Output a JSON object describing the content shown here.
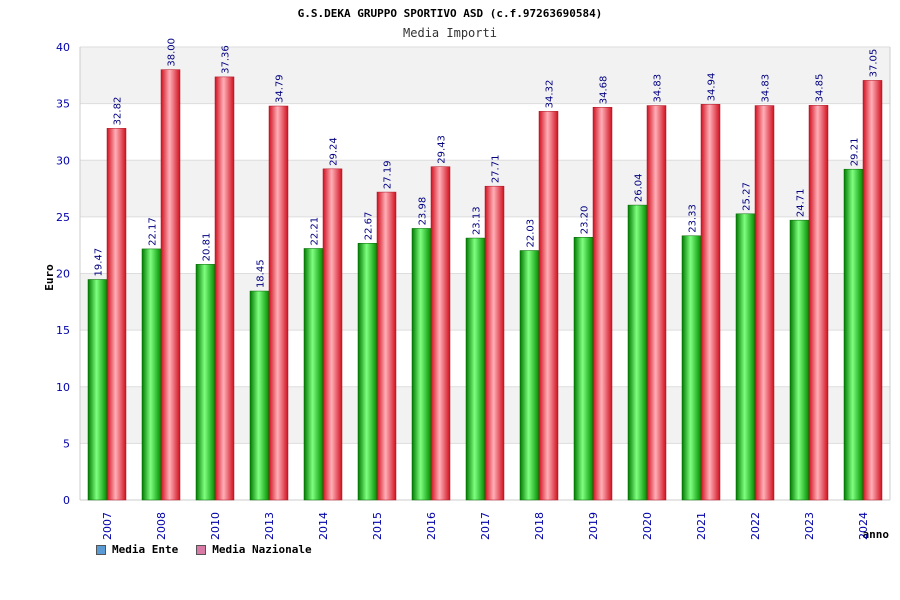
{
  "chart_data": {
    "type": "bar",
    "title": "G.S.DEKA GRUPPO SPORTIVO ASD (c.f.97263690584)",
    "subtitle": "Media Importi",
    "xlabel": "anno",
    "ylabel": "Euro",
    "ylim": [
      0,
      40
    ],
    "yticks": [
      0,
      5,
      10,
      15,
      20,
      25,
      30,
      35,
      40
    ],
    "categories": [
      "2007",
      "2008",
      "2010",
      "2013",
      "2014",
      "2015",
      "2016",
      "2017",
      "2018",
      "2019",
      "2020",
      "2021",
      "2022",
      "2023",
      "2024"
    ],
    "series": [
      {
        "name": "Media Ente",
        "color": "#00b000",
        "legend_color": "#5b9bd5",
        "values": [
          19.47,
          22.17,
          20.81,
          18.45,
          22.21,
          22.67,
          23.98,
          23.13,
          22.03,
          23.2,
          26.04,
          23.33,
          25.27,
          24.71,
          29.21
        ],
        "labels": [
          "19.47",
          "22.17",
          "20.81",
          "18.45",
          "22.21",
          "22.67",
          "23.98",
          "23.13",
          "22.03",
          "23.20",
          "26.04",
          "23.33",
          "25.27",
          "24.71",
          "29.21"
        ]
      },
      {
        "name": "Media Nazionale",
        "color": "#e8182c",
        "legend_color": "#d97aa6",
        "values": [
          32.82,
          38.0,
          37.36,
          34.79,
          29.24,
          27.19,
          29.43,
          27.71,
          34.32,
          34.68,
          34.83,
          34.94,
          34.83,
          34.85,
          37.05
        ],
        "labels": [
          "32.82",
          "38.00",
          "37.36",
          "34.79",
          "29.24",
          "27.19",
          "29.43",
          "27.71",
          "34.32",
          "34.68",
          "34.83",
          "34.94",
          "34.83",
          "34.85",
          "37.05"
        ]
      }
    ],
    "grid": true,
    "legend_position": "bottom-left"
  }
}
